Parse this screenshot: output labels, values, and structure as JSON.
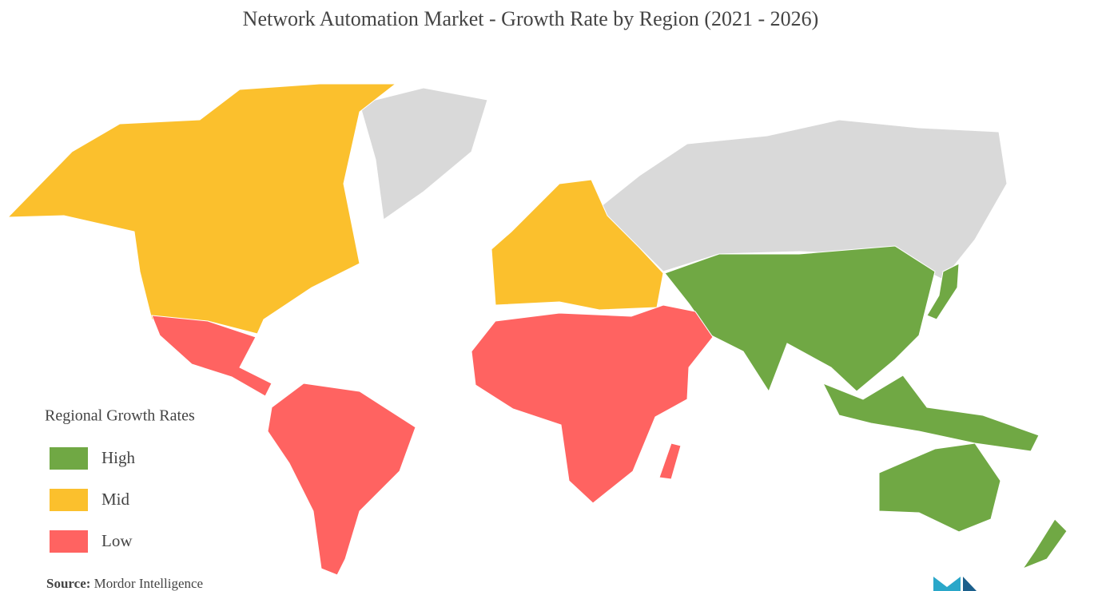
{
  "header": {
    "title": "Network Automation Market - Growth Rate by Region (2021 - 2026)"
  },
  "legend": {
    "title": "Regional Growth Rates",
    "items": [
      {
        "label": "High",
        "color": "#70a844"
      },
      {
        "label": "Mid",
        "color": "#fbc02d"
      },
      {
        "label": "Low",
        "color": "#ff6361"
      }
    ]
  },
  "source": {
    "label": "Source:",
    "text": "Mordor Intelligence"
  },
  "no_data_color": "#d9d9d9"
}
